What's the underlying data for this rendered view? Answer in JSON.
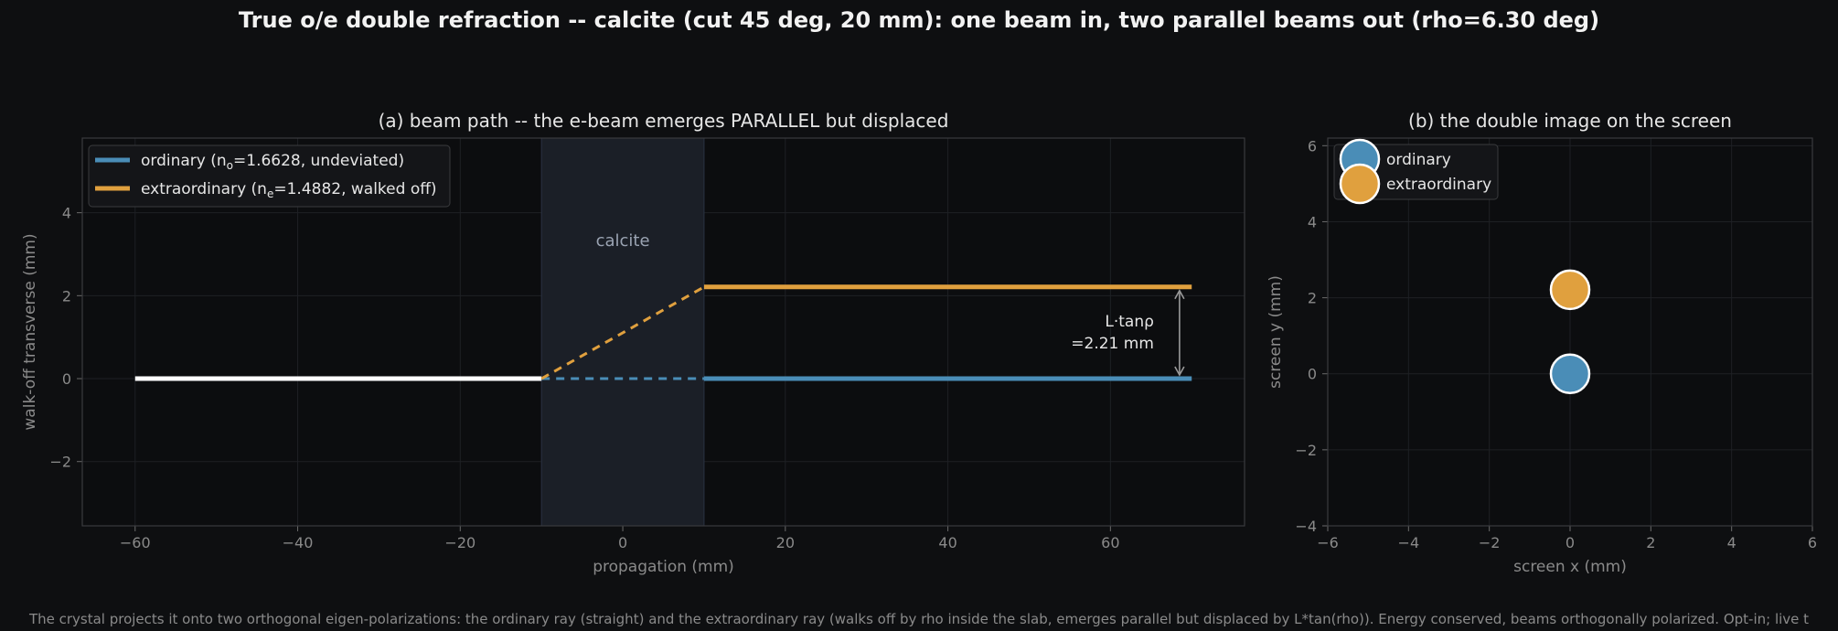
{
  "suptitle": "True o/e double refraction -- calcite (cut 45 deg, 20 mm): one beam in, two parallel beams out (rho=6.30 deg)",
  "footer": "The crystal projects it onto two orthogonal eigen-polarizations: the ordinary ray (straight) and the extraordinary ray (walks off by rho inside the slab, emerges parallel but displaced by L*tan(rho)). Energy conserved, beams orthogonally polarized. Opt-in; live t",
  "colors": {
    "background": "#0e0f11",
    "ordinary": "#4a8db7",
    "extraordinary": "#e0a03e",
    "incident": "#ffffff",
    "crystal": "#1b1f27",
    "text": "#e6e6e6",
    "muted": "#8a8a8a"
  },
  "chart_data": [
    {
      "type": "line",
      "title": "(a) beam path -- the e-beam emerges PARALLEL but displaced",
      "xlabel": "propagation (mm)",
      "ylabel": "walk-off transverse (mm)",
      "xlim": [
        -66.5,
        76.5
      ],
      "ylim": [
        -3.55,
        5.8
      ],
      "xticks": [
        -60,
        -40,
        -20,
        0,
        20,
        40,
        60
      ],
      "yticks": [
        -2,
        0,
        2,
        4
      ],
      "grid": true,
      "legend_position": "top-left",
      "crystal_region": {
        "x": [
          -10,
          10
        ],
        "label": "calcite"
      },
      "series": [
        {
          "name": "incident",
          "x": [
            -60,
            -10
          ],
          "y": [
            0,
            0
          ],
          "style": "solid",
          "color_key": "incident"
        },
        {
          "name": "ordinary-inside",
          "x": [
            -10,
            10
          ],
          "y": [
            0,
            0
          ],
          "style": "dashed",
          "color_key": "ordinary"
        },
        {
          "name": "extraordinary-inside",
          "x": [
            -10,
            10
          ],
          "y": [
            0,
            2.21
          ],
          "style": "dashed",
          "color_key": "extraordinary"
        },
        {
          "name": "ordinary (nₒ=1.6628, undeviated)",
          "legend_base": "ordinary (n",
          "legend_sub": "o",
          "legend_rest": "=1.6628, undeviated)",
          "x": [
            10,
            70
          ],
          "y": [
            0,
            0
          ],
          "style": "solid",
          "color_key": "ordinary"
        },
        {
          "name": "extraordinary (nₑ=1.4882, walked off)",
          "legend_base": "extraordinary (n",
          "legend_sub": "e",
          "legend_rest": "=1.4882, walked off)",
          "x": [
            10,
            70
          ],
          "y": [
            2.21,
            2.21
          ],
          "style": "solid",
          "color_key": "extraordinary"
        }
      ],
      "annotation": {
        "line1": "L·tanρ",
        "line2": "=2.21 mm",
        "x": 68.5,
        "y_from": 0,
        "y_to": 2.21
      }
    },
    {
      "type": "scatter",
      "title": "(b) the double image on the screen",
      "xlabel": "screen x (mm)",
      "ylabel": "screen y (mm)",
      "xlim": [
        -6,
        6
      ],
      "ylim": [
        -4,
        6.2
      ],
      "xticks": [
        -6,
        -4,
        -2,
        0,
        2,
        4,
        6
      ],
      "yticks": [
        -4,
        -2,
        0,
        2,
        4,
        6
      ],
      "grid": true,
      "legend_position": "top-left",
      "series": [
        {
          "name": "ordinary",
          "x": [
            0
          ],
          "y": [
            0
          ],
          "color_key": "ordinary"
        },
        {
          "name": "extraordinary",
          "x": [
            0
          ],
          "y": [
            2.21
          ],
          "color_key": "extraordinary"
        }
      ]
    }
  ]
}
